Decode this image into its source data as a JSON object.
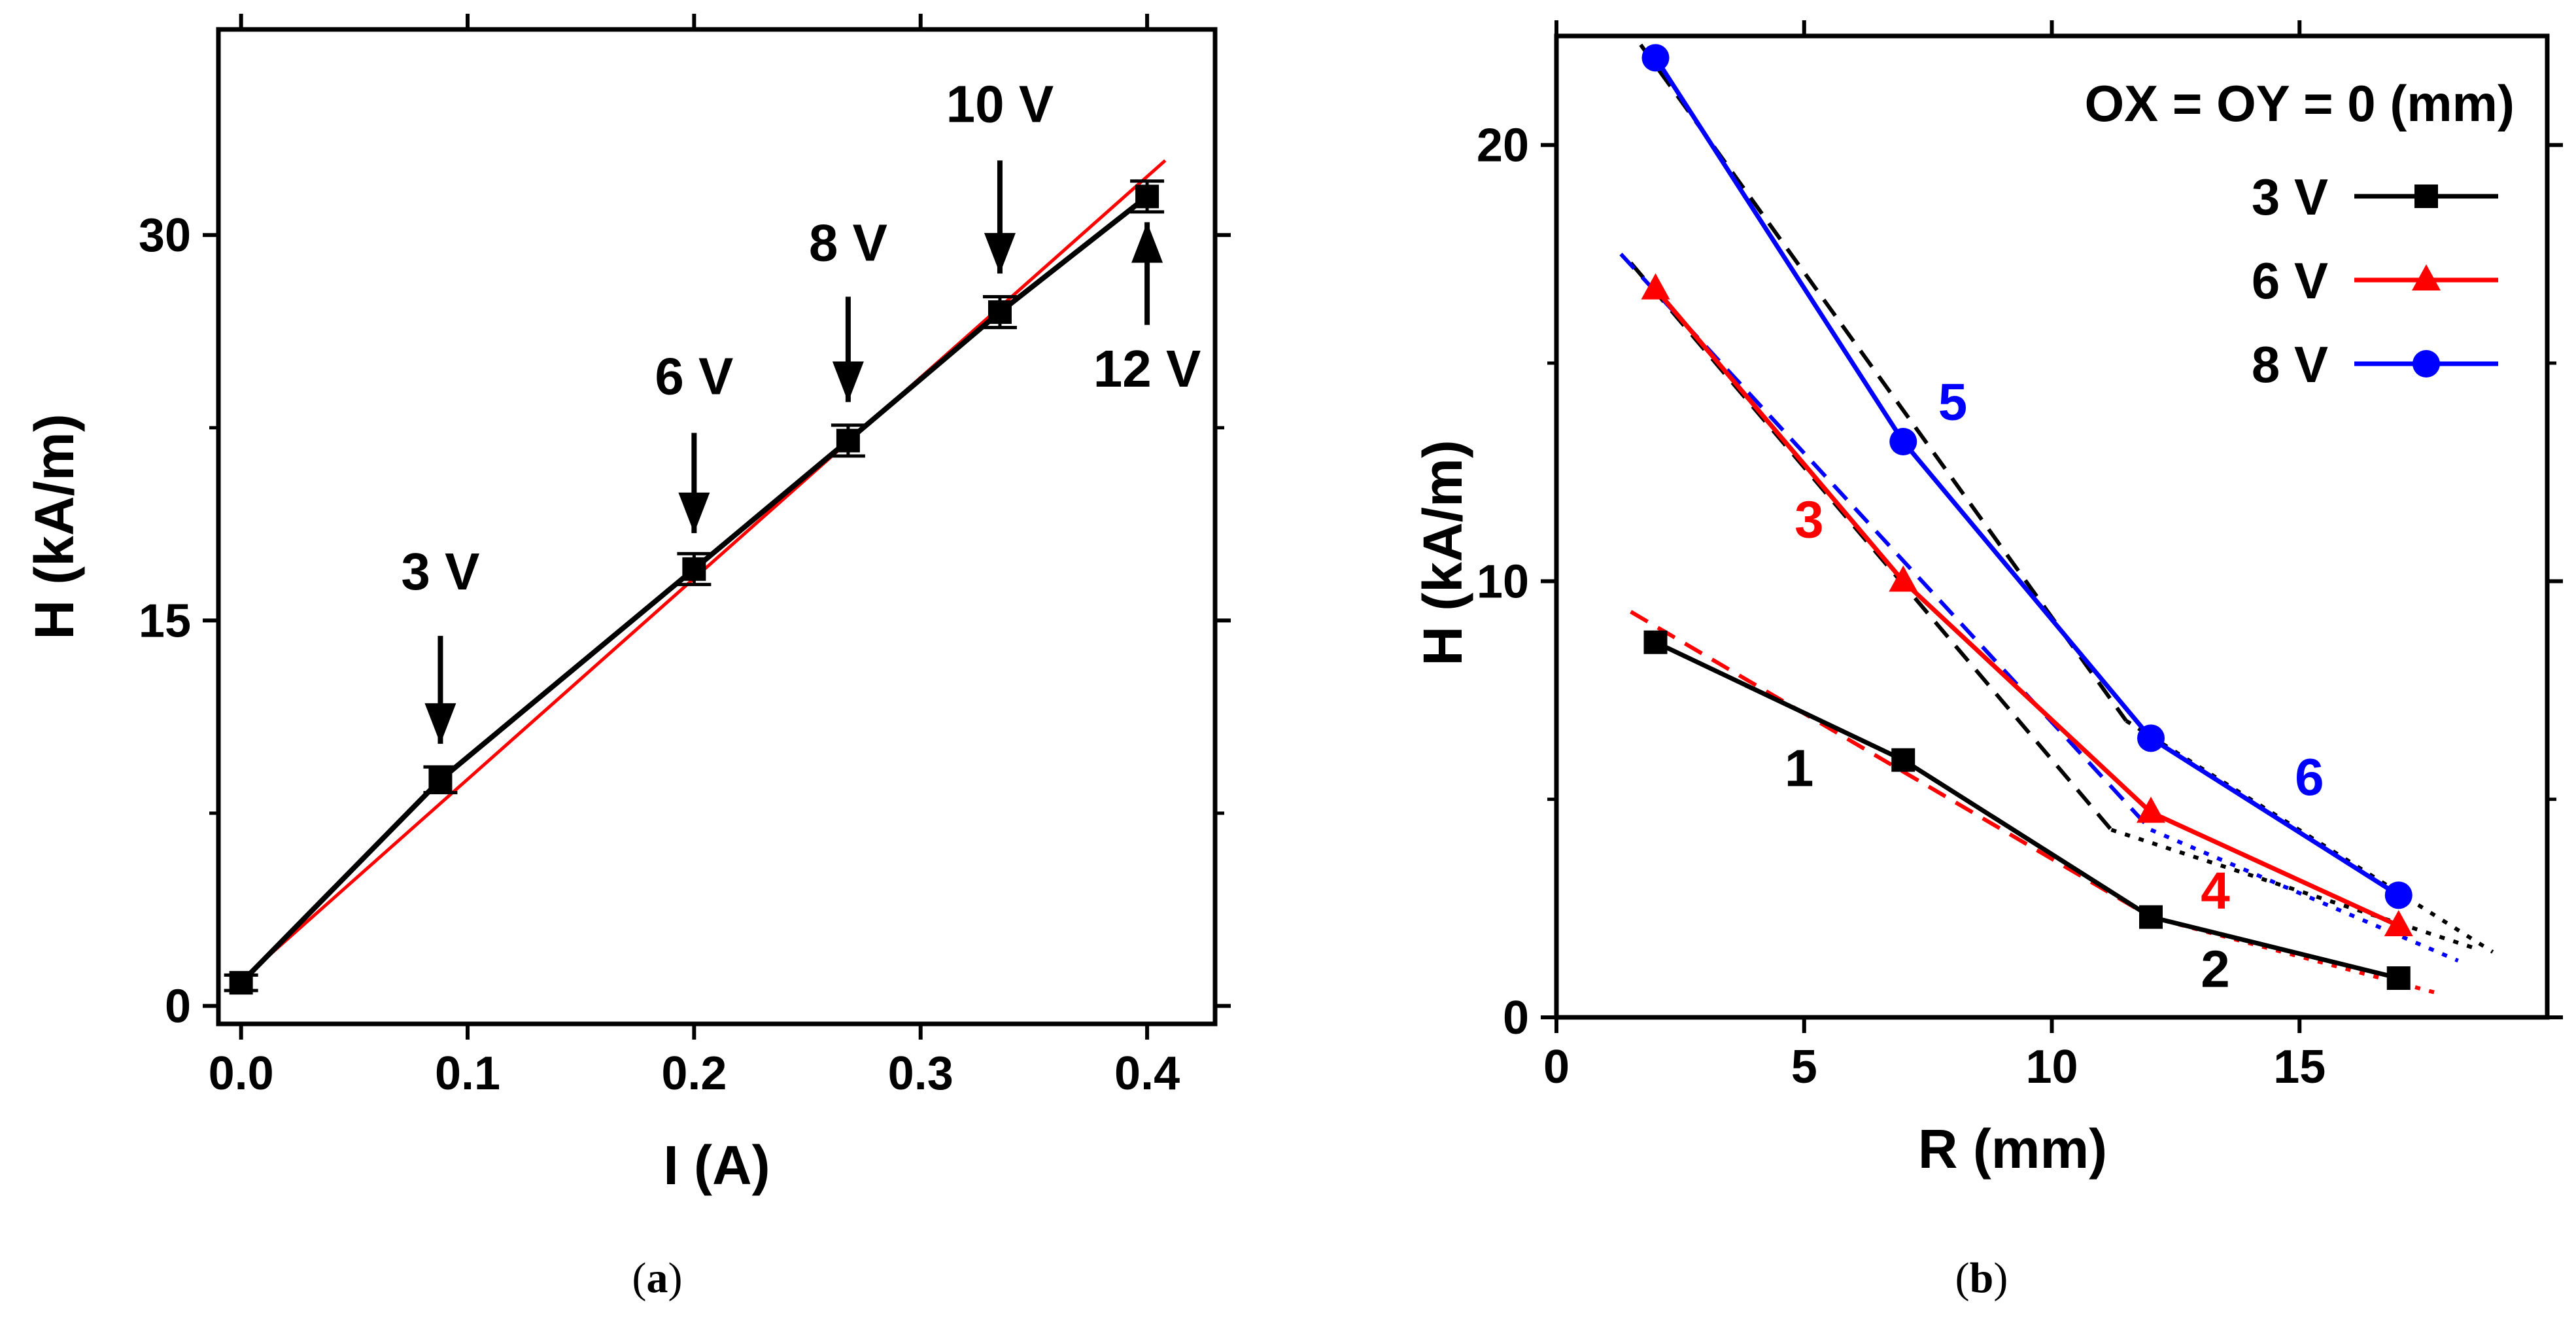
{
  "chart_data": [
    {
      "type": "line",
      "panel": "a",
      "caption": {
        "open": "(",
        "label": "a",
        "close": ")"
      },
      "xlabel": "I (A)",
      "ylabel": "H (kA/m)",
      "xlim": [
        -0.01,
        0.43
      ],
      "ylim": [
        -0.7,
        38
      ],
      "xticks": [
        0.0,
        0.1,
        0.2,
        0.3,
        0.4
      ],
      "xtick_labels": [
        "0.0",
        "0.1",
        "0.2",
        "0.3",
        "0.4"
      ],
      "yticks": [
        0,
        15,
        30
      ],
      "ytick_labels": [
        "0",
        "15",
        "30"
      ],
      "series": [
        {
          "color": "#000000",
          "marker": "square",
          "x": [
            0.0,
            0.088,
            0.2,
            0.268,
            0.335,
            0.4
          ],
          "y": [
            0.9,
            8.8,
            17.0,
            22.0,
            27.0,
            31.5
          ],
          "yerr": [
            0.3,
            0.5,
            0.6,
            0.6,
            0.6,
            0.6
          ]
        },
        {
          "color": "#ff0000",
          "style": "fit",
          "x": [
            0.0,
            0.408
          ],
          "y": [
            1.0,
            32.9
          ]
        }
      ],
      "annotations": [
        {
          "text": "3 V",
          "x": 0.088,
          "direction": "down",
          "label_y": 16.2,
          "arrow_from": 14.4,
          "arrow_to": 10.2
        },
        {
          "text": "6 V",
          "x": 0.2,
          "direction": "down",
          "label_y": 23.8,
          "arrow_from": 22.3,
          "arrow_to": 18.4
        },
        {
          "text": "8 V",
          "x": 0.268,
          "direction": "down",
          "label_y": 29.0,
          "arrow_from": 27.6,
          "arrow_to": 23.5
        },
        {
          "text": "10 V",
          "x": 0.335,
          "direction": "down",
          "label_y": 34.4,
          "arrow_from": 32.9,
          "arrow_to": 28.5
        },
        {
          "text": "12 V",
          "x": 0.4,
          "direction": "up",
          "label_y": 24.1,
          "arrow_from": 26.5,
          "arrow_to": 30.5
        }
      ]
    },
    {
      "type": "line",
      "panel": "b",
      "caption": {
        "open": "(",
        "label": "b",
        "close": ")"
      },
      "xlabel": "R (mm)",
      "ylabel": "H (kA/m)",
      "xlim": [
        0,
        20
      ],
      "ylim": [
        0,
        22.5
      ],
      "xticks": [
        0,
        5,
        10,
        15
      ],
      "xtick_labels": [
        "0",
        "5",
        "10",
        "15"
      ],
      "yticks": [
        0,
        10,
        20
      ],
      "ytick_labels": [
        "0",
        "10",
        "20"
      ],
      "legend_title": "OX = OY = 0 (mm)",
      "legend_position": "top-right",
      "series": [
        {
          "name": "3 V",
          "color": "#000000",
          "marker": "square",
          "x": [
            2,
            7,
            12,
            17
          ],
          "y": [
            8.6,
            5.9,
            2.3,
            0.9
          ]
        },
        {
          "name": "6 V",
          "color": "#ff0000",
          "marker": "triangle",
          "x": [
            2,
            7,
            12,
            17
          ],
          "y": [
            16.7,
            10.0,
            4.7,
            2.1
          ]
        },
        {
          "name": "8 V",
          "color": "#0000ff",
          "marker": "circle",
          "x": [
            2,
            7,
            12,
            17
          ],
          "y": [
            22.0,
            13.2,
            6.4,
            2.8
          ]
        }
      ],
      "fit_lines": [
        {
          "color": "#ff0000",
          "dash": "dash",
          "x": [
            1.5,
            12.0
          ],
          "y": [
            9.3,
            2.3
          ]
        },
        {
          "color": "#ff0000",
          "dash": "dot",
          "x": [
            12.0,
            17.8
          ],
          "y": [
            2.3,
            0.55
          ]
        },
        {
          "color": "#000000",
          "dash": "dash",
          "x": [
            1.5,
            11.2
          ],
          "y": [
            17.3,
            4.3
          ]
        },
        {
          "color": "#000000",
          "dash": "dot",
          "x": [
            11.2,
            18.5
          ],
          "y": [
            4.3,
            1.6
          ]
        },
        {
          "color": "#0000ff",
          "dash": "dash",
          "x": [
            1.3,
            12.0
          ],
          "y": [
            17.5,
            4.3
          ]
        },
        {
          "color": "#0000ff",
          "dash": "dot",
          "x": [
            12.0,
            18.2
          ],
          "y": [
            4.3,
            1.3
          ]
        },
        {
          "color": "#000000",
          "dash": "dash",
          "x": [
            1.7,
            11.5
          ],
          "y": [
            22.3,
            6.8
          ]
        },
        {
          "color": "#000000",
          "dash": "dot",
          "x": [
            11.5,
            18.9
          ],
          "y": [
            6.8,
            1.5
          ]
        }
      ],
      "annotations": [
        {
          "text": "1",
          "x": 4.9,
          "y": 5.3,
          "color": "#000000"
        },
        {
          "text": "2",
          "x": 13.3,
          "y": 0.7,
          "color": "#000000"
        },
        {
          "text": "3",
          "x": 5.1,
          "y": 11.0,
          "color": "#ff0000"
        },
        {
          "text": "4",
          "x": 13.3,
          "y": 2.5,
          "color": "#ff0000"
        },
        {
          "text": "5",
          "x": 8.0,
          "y": 13.7,
          "color": "#0000ff"
        },
        {
          "text": "6",
          "x": 15.2,
          "y": 5.1,
          "color": "#0000ff"
        }
      ]
    }
  ]
}
